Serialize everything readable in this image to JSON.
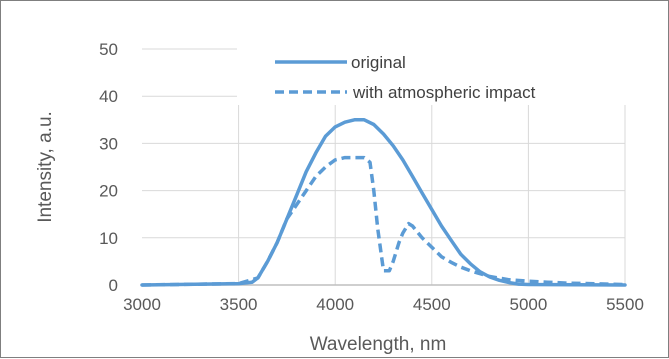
{
  "chart_data": {
    "type": "line",
    "xlabel": "Wavelength, nm",
    "ylabel": "Intensity, a.u.",
    "xlim": [
      3000,
      5500
    ],
    "ylim": [
      0,
      50
    ],
    "x_ticks": [
      "3000",
      "3500",
      "4000",
      "4500",
      "5000",
      "5500"
    ],
    "y_ticks": [
      "0",
      "10",
      "20",
      "30",
      "40",
      "50"
    ],
    "grid": "vertical and horizontal",
    "legend": "top-right",
    "colors": {
      "series": "#5b9bd5",
      "grid": "#d9d9d9",
      "axis": "#bfbfbf"
    },
    "series": [
      {
        "name": "original",
        "style": "solid",
        "x": [
          3000,
          3500,
          3570,
          3600,
          3650,
          3700,
          3750,
          3800,
          3850,
          3900,
          3950,
          4000,
          4050,
          4100,
          4150,
          4200,
          4250,
          4300,
          4350,
          4400,
          4450,
          4500,
          4550,
          4600,
          4650,
          4700,
          4750,
          4800,
          4850,
          4900,
          4950,
          5000,
          5500
        ],
        "values": [
          0,
          0.3,
          0.6,
          1.5,
          5,
          9,
          14,
          19,
          24,
          28,
          31.5,
          33.5,
          34.5,
          35,
          35,
          34,
          32,
          29.5,
          26.5,
          23,
          19.5,
          16,
          12.5,
          9.5,
          6.5,
          4.5,
          2.8,
          1.7,
          1,
          0.5,
          0.2,
          0.1,
          0
        ]
      },
      {
        "name": "with atmospheric impact",
        "style": "dashed",
        "x": [
          3000,
          3500,
          3600,
          3650,
          3700,
          3750,
          3800,
          3850,
          3900,
          3950,
          4000,
          4050,
          4100,
          4150,
          4180,
          4200,
          4220,
          4250,
          4280,
          4300,
          4330,
          4350,
          4380,
          4400,
          4450,
          4500,
          4550,
          4600,
          4650,
          4700,
          4800,
          4900,
          5000,
          5100,
          5200,
          5500
        ],
        "values": [
          0,
          0.3,
          1.5,
          5,
          9,
          14,
          17,
          20,
          23,
          25,
          26.5,
          27,
          27,
          27,
          26,
          20,
          12,
          3,
          3,
          5,
          9,
          11,
          13,
          12.5,
          10,
          8,
          6,
          4.8,
          3.8,
          3,
          1.8,
          1.1,
          0.8,
          0.6,
          0.4,
          0.1
        ]
      }
    ]
  }
}
